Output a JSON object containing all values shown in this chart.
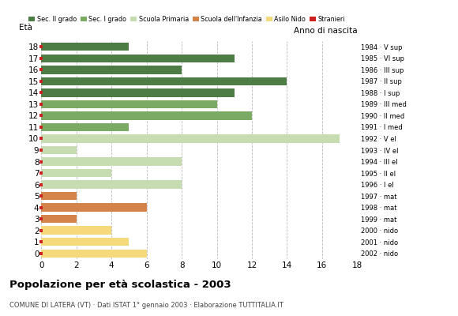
{
  "title": "Popolazione per età scolastica - 2003",
  "subtitle": "COMUNE DI LATERA (VT) · Dati ISTAT 1° gennaio 2003 · Elaborazione TUTTITALIA.IT",
  "label_eta": "Età",
  "label_anno": "Anno di nascita",
  "ages": [
    18,
    17,
    16,
    15,
    14,
    13,
    12,
    11,
    10,
    9,
    8,
    7,
    6,
    5,
    4,
    3,
    2,
    1,
    0
  ],
  "values": [
    5,
    11,
    8,
    14,
    11,
    10,
    12,
    5,
    17,
    2,
    8,
    4,
    8,
    2,
    6,
    2,
    4,
    5,
    6
  ],
  "years": [
    "1984 · V sup",
    "1985 · VI sup",
    "1986 · III sup",
    "1987 · II sup",
    "1988 · I sup",
    "1989 · III med",
    "1990 · II med",
    "1991 · I med",
    "1992 · V el",
    "1993 · IV el",
    "1994 · III el",
    "1995 · II el",
    "1996 · I el",
    "1997 · mat",
    "1998 · mat",
    "1999 · mat",
    "2000 · nido",
    "2001 · nido",
    "2002 · nido"
  ],
  "bar_colors": [
    "#4e7c45",
    "#4e7c45",
    "#4e7c45",
    "#4e7c45",
    "#4e7c45",
    "#7aaa63",
    "#7aaa63",
    "#7aaa63",
    "#c5ddb0",
    "#c5ddb0",
    "#c5ddb0",
    "#c5ddb0",
    "#c5ddb0",
    "#d4844a",
    "#d4844a",
    "#d4844a",
    "#f5d97a",
    "#f5d97a",
    "#f5d97a"
  ],
  "stranieri_color": "#cc2222",
  "legend_labels": [
    "Sec. II grado",
    "Sec. I grado",
    "Scuola Primaria",
    "Scuola dell'Infanzia",
    "Asilo Nido",
    "Stranieri"
  ],
  "legend_colors": [
    "#4e7c45",
    "#7aaa63",
    "#c5ddb0",
    "#d4844a",
    "#f5d97a",
    "#cc2222"
  ],
  "xlim": [
    0,
    18
  ],
  "xticks": [
    0,
    2,
    4,
    6,
    8,
    10,
    12,
    14,
    16,
    18
  ],
  "background_color": "#ffffff",
  "grid_color": "#bbbbbb"
}
